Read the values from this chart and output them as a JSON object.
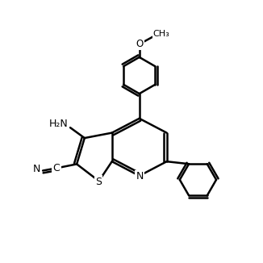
{
  "bg_color": "#ffffff",
  "line_color": "#000000",
  "line_width": 1.8,
  "figure_size": [
    3.26,
    3.26
  ],
  "dpi": 100,
  "atoms": {
    "S": {
      "label": "S",
      "color": "#000000"
    },
    "N": {
      "label": "N",
      "color": "#000000"
    },
    "O": {
      "label": "O",
      "color": "#000000"
    },
    "CN": {
      "label": "N",
      "color": "#000000"
    },
    "NH2": {
      "label": "H₂N",
      "color": "#000000"
    },
    "OMe": {
      "label": "O",
      "color": "#000000"
    }
  }
}
